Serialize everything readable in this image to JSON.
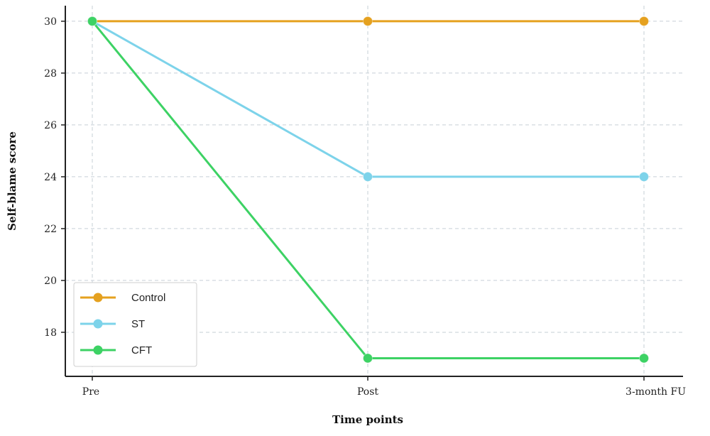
{
  "chart_data": {
    "type": "line",
    "title": "",
    "xlabel": "Time points",
    "ylabel": "Self-blame score",
    "categories": [
      "Pre",
      "Post",
      "3-month FU"
    ],
    "ylim": [
      16.3,
      30.6
    ],
    "yticks": [
      18,
      20,
      22,
      24,
      26,
      28,
      30
    ],
    "grid": true,
    "legend_position": "bottom-left",
    "series": [
      {
        "name": "Control",
        "color": "#E5A11F",
        "values": [
          30,
          30,
          30
        ]
      },
      {
        "name": "ST",
        "color": "#7DD3EA",
        "values": [
          30,
          24,
          24
        ]
      },
      {
        "name": "CFT",
        "color": "#3DD264",
        "values": [
          30,
          17,
          17
        ]
      }
    ]
  }
}
